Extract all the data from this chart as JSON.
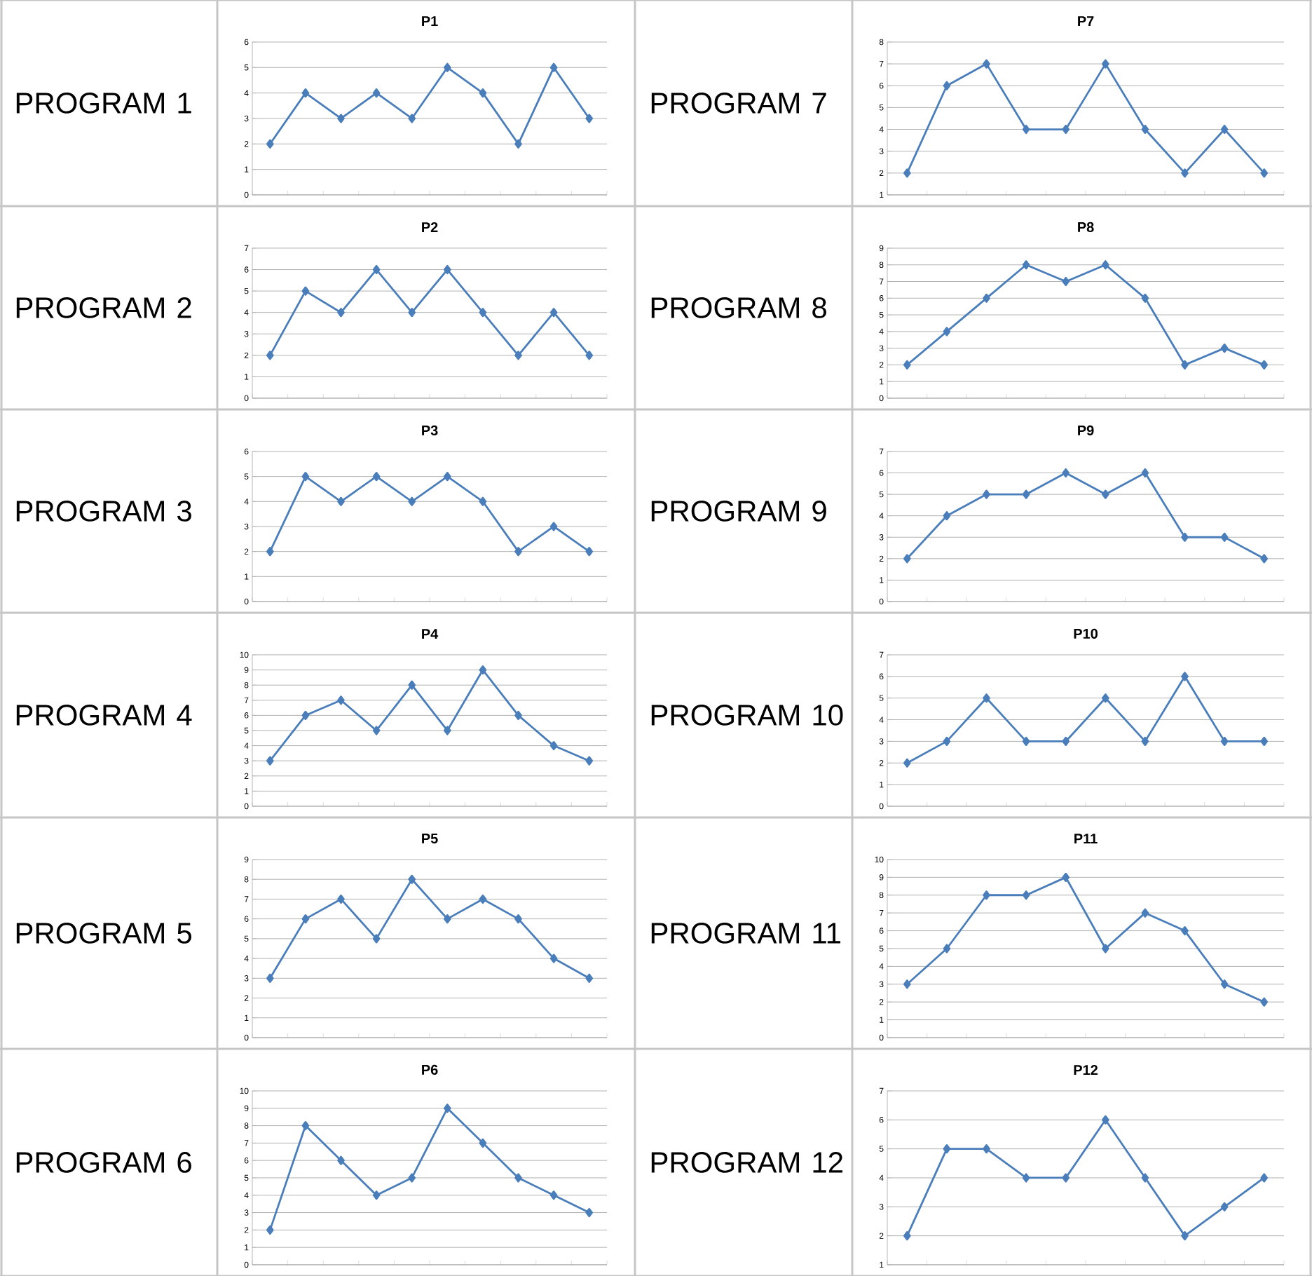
{
  "chart_data": [
    {
      "type": "line",
      "title": "P1",
      "annotations": [
        "PROGRAM 1"
      ],
      "categories": [
        null,
        null,
        null,
        null,
        null,
        null,
        null,
        null,
        null,
        null
      ],
      "values": [
        2,
        4,
        3,
        4,
        3,
        5,
        4,
        2,
        5,
        3
      ],
      "color": "#4a7ebb",
      "ylim": [
        0,
        6
      ],
      "yticks": [
        0,
        1,
        2,
        3,
        4,
        5,
        6
      ],
      "grid": "y",
      "marker": "diamond",
      "tick_labels": "y"
    },
    {
      "type": "line",
      "title": "P2",
      "annotations": [
        "PROGRAM 2"
      ],
      "categories": [
        null,
        null,
        null,
        null,
        null,
        null,
        null,
        null,
        null,
        null
      ],
      "values": [
        2,
        5,
        4,
        6,
        4,
        6,
        4,
        2,
        4,
        2
      ],
      "color": "#4a7ebb",
      "ylim": [
        0,
        7
      ],
      "yticks": [
        0,
        1,
        2,
        3,
        4,
        5,
        6,
        7
      ],
      "grid": "y",
      "marker": "diamond",
      "tick_labels": "y"
    },
    {
      "type": "line",
      "title": "P3",
      "annotations": [
        "PROGRAM 3"
      ],
      "categories": [
        null,
        null,
        null,
        null,
        null,
        null,
        null,
        null,
        null,
        null
      ],
      "values": [
        2,
        5,
        4,
        5,
        4,
        5,
        4,
        2,
        3,
        2
      ],
      "color": "#4a7ebb",
      "ylim": [
        0,
        6
      ],
      "yticks": [
        0,
        1,
        2,
        3,
        4,
        5,
        6
      ],
      "grid": "y",
      "marker": "diamond",
      "tick_labels": "y"
    },
    {
      "type": "line",
      "title": "P4",
      "annotations": [
        "PROGRAM 4"
      ],
      "categories": [
        null,
        null,
        null,
        null,
        null,
        null,
        null,
        null,
        null,
        null
      ],
      "values": [
        3,
        6,
        7,
        5,
        8,
        5,
        9,
        6,
        4,
        3
      ],
      "color": "#4a7ebb",
      "ylim": [
        0,
        10
      ],
      "yticks": [
        0,
        1,
        2,
        3,
        4,
        5,
        6,
        7,
        8,
        9,
        10
      ],
      "grid": "y",
      "marker": "diamond",
      "tick_labels": "y"
    },
    {
      "type": "line",
      "title": "P5",
      "annotations": [
        "PROGRAM 5"
      ],
      "categories": [
        null,
        null,
        null,
        null,
        null,
        null,
        null,
        null,
        null,
        null
      ],
      "values": [
        3,
        6,
        7,
        5,
        8,
        6,
        7,
        6,
        4,
        3
      ],
      "color": "#4a7ebb",
      "ylim": [
        0,
        9
      ],
      "yticks": [
        0,
        1,
        2,
        3,
        4,
        5,
        6,
        7,
        8,
        9
      ],
      "grid": "y",
      "marker": "diamond",
      "tick_labels": "y"
    },
    {
      "type": "line",
      "title": "P6",
      "annotations": [
        "PROGRAM 6"
      ],
      "categories": [
        null,
        null,
        null,
        null,
        null,
        null,
        null,
        null,
        null,
        null
      ],
      "values": [
        2,
        8,
        6,
        4,
        5,
        9,
        7,
        5,
        4,
        3
      ],
      "color": "#4a7ebb",
      "ylim": [
        0,
        10
      ],
      "yticks": [
        0,
        1,
        2,
        3,
        4,
        5,
        6,
        7,
        8,
        9,
        10
      ],
      "grid": "y",
      "marker": "diamond",
      "tick_labels": "y"
    },
    {
      "type": "line",
      "title": "P7",
      "annotations": [
        "PROGRAM 7"
      ],
      "categories": [
        null,
        null,
        null,
        null,
        null,
        null,
        null,
        null,
        null,
        null
      ],
      "values": [
        2,
        6,
        7,
        4,
        4,
        7,
        4,
        2,
        4,
        2
      ],
      "color": "#4a7ebb",
      "ylim": [
        1,
        8
      ],
      "yticks": [
        1,
        2,
        3,
        4,
        5,
        6,
        7,
        8
      ],
      "grid": "y",
      "marker": "diamond",
      "tick_labels": "y"
    },
    {
      "type": "line",
      "title": "P8",
      "annotations": [
        "PROGRAM 8"
      ],
      "categories": [
        null,
        null,
        null,
        null,
        null,
        null,
        null,
        null,
        null,
        null
      ],
      "values": [
        2,
        4,
        6,
        8,
        7,
        8,
        6,
        2,
        3,
        2
      ],
      "color": "#4a7ebb",
      "ylim": [
        0,
        9
      ],
      "yticks": [
        0,
        1,
        2,
        3,
        4,
        5,
        6,
        7,
        8,
        9
      ],
      "grid": "y",
      "marker": "diamond",
      "tick_labels": "y"
    },
    {
      "type": "line",
      "title": "P9",
      "annotations": [
        "PROGRAM 9"
      ],
      "categories": [
        null,
        null,
        null,
        null,
        null,
        null,
        null,
        null,
        null,
        null
      ],
      "values": [
        2,
        4,
        5,
        5,
        6,
        5,
        6,
        3,
        3,
        2
      ],
      "color": "#4a7ebb",
      "ylim": [
        0,
        7
      ],
      "yticks": [
        0,
        1,
        2,
        3,
        4,
        5,
        6,
        7
      ],
      "grid": "y",
      "marker": "diamond",
      "tick_labels": "y"
    },
    {
      "type": "line",
      "title": "P10",
      "annotations": [
        "PROGRAM 10"
      ],
      "categories": [
        null,
        null,
        null,
        null,
        null,
        null,
        null,
        null,
        null,
        null
      ],
      "values": [
        2,
        3,
        5,
        3,
        3,
        5,
        3,
        6,
        3,
        3
      ],
      "color": "#4a7ebb",
      "ylim": [
        0,
        7
      ],
      "yticks": [
        0,
        1,
        2,
        3,
        4,
        5,
        6,
        7
      ],
      "grid": "y",
      "marker": "diamond",
      "tick_labels": "y"
    },
    {
      "type": "line",
      "title": "P11",
      "annotations": [
        "PROGRAM 11"
      ],
      "categories": [
        null,
        null,
        null,
        null,
        null,
        null,
        null,
        null,
        null,
        null
      ],
      "values": [
        3,
        5,
        8,
        8,
        9,
        5,
        7,
        6,
        3,
        2
      ],
      "color": "#4a7ebb",
      "ylim": [
        0,
        10
      ],
      "yticks": [
        0,
        1,
        2,
        3,
        4,
        5,
        6,
        7,
        8,
        9,
        10
      ],
      "grid": "y",
      "marker": "diamond",
      "tick_labels": "y"
    },
    {
      "type": "line",
      "title": "P12",
      "annotations": [
        "PROGRAM 12"
      ],
      "categories": [
        null,
        null,
        null,
        null,
        null,
        null,
        null,
        null,
        null,
        null
      ],
      "values": [
        2,
        5,
        5,
        4,
        4,
        6,
        4,
        2,
        3,
        4
      ],
      "color": "#4a7ebb",
      "ylim": [
        1,
        7
      ],
      "yticks": [
        1,
        2,
        3,
        4,
        5,
        6,
        7
      ],
      "grid": "y",
      "marker": "diamond",
      "tick_labels": "y"
    }
  ]
}
